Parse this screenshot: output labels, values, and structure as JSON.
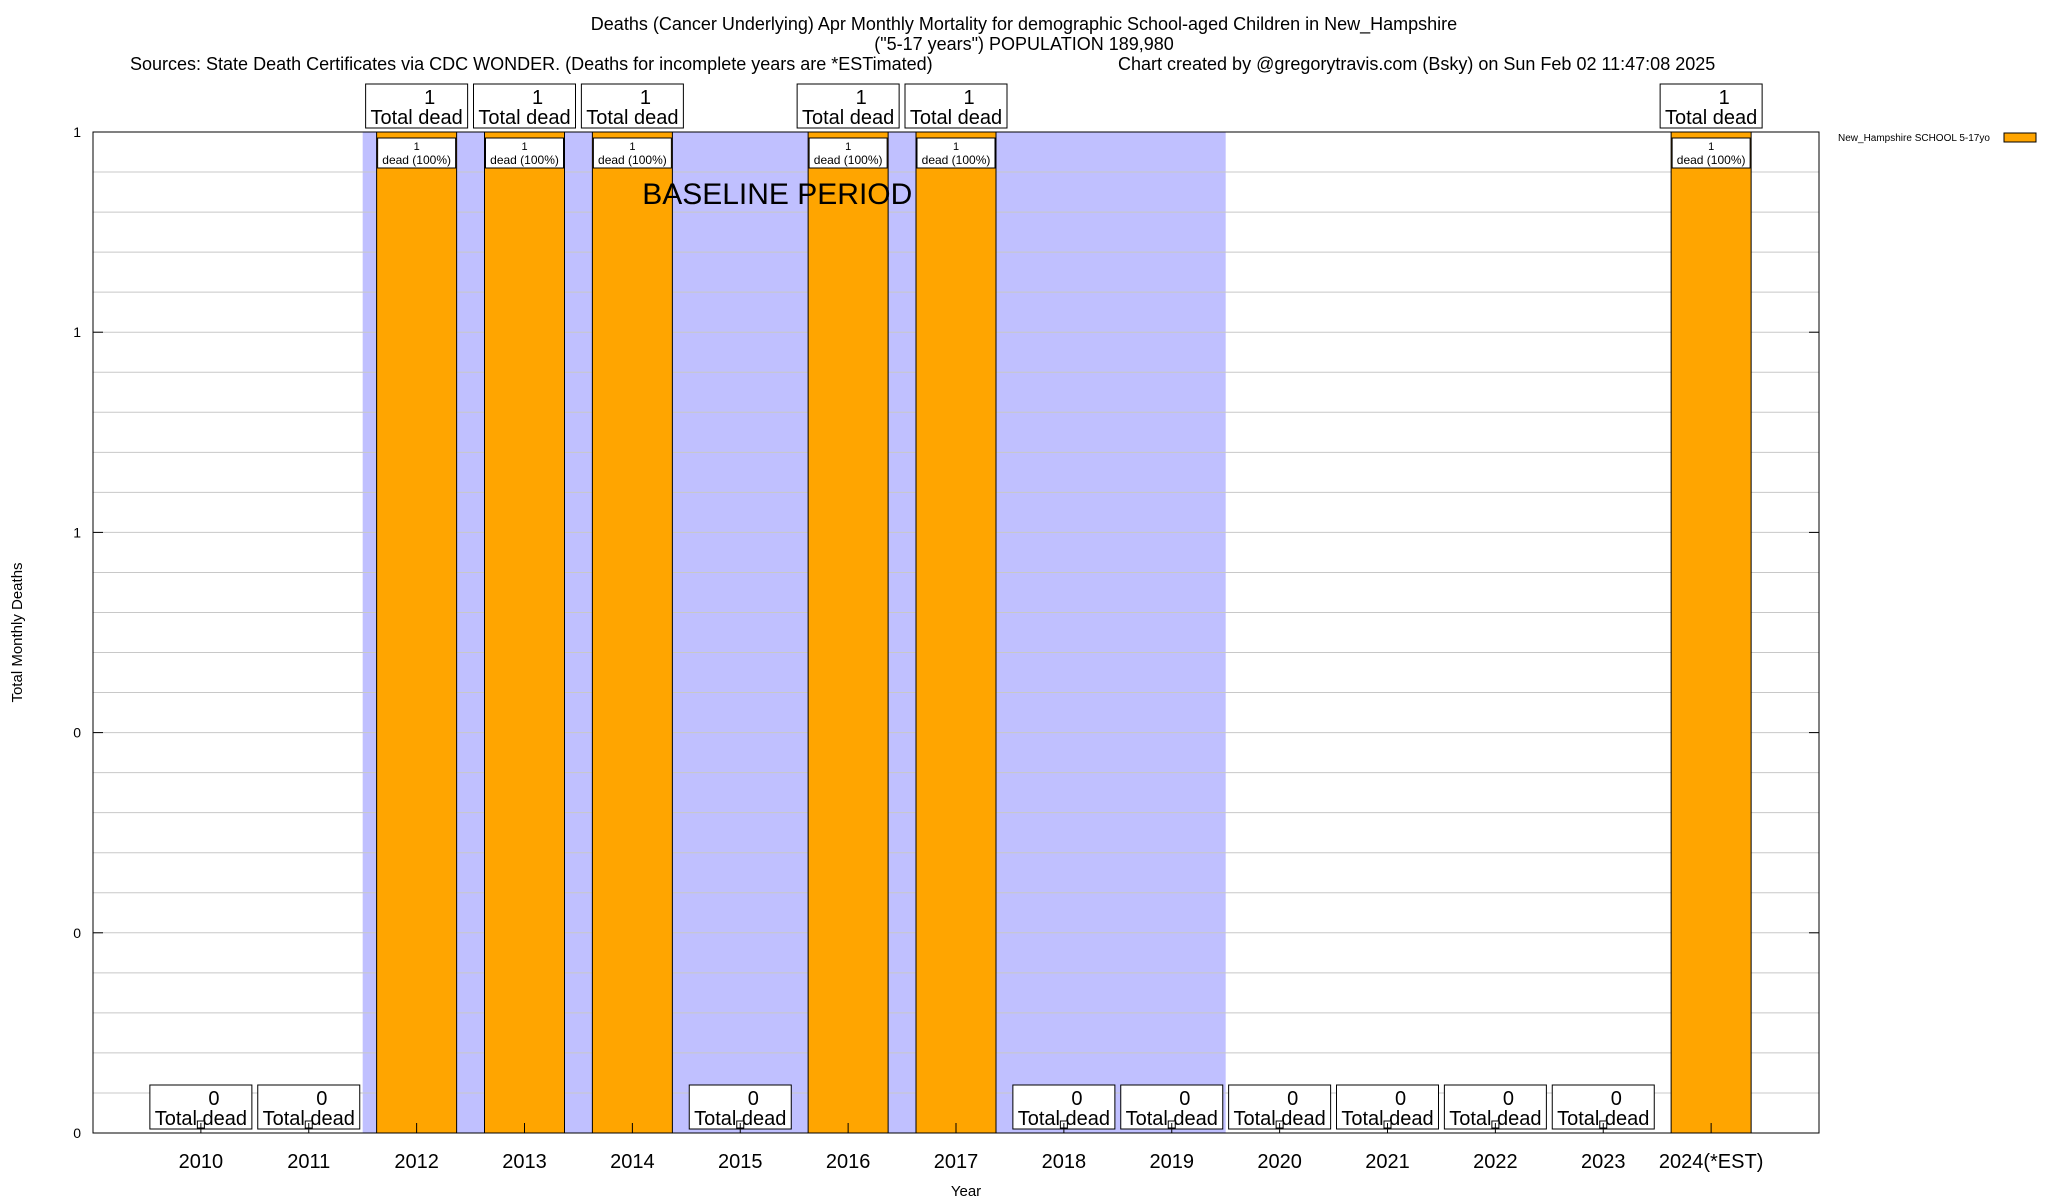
{
  "header": {
    "title_line1": "Deaths (Cancer Underlying) Apr Monthly Mortality for demographic School-aged Children in New_Hampshire",
    "title_line2": "(\"5-17 years\") POPULATION 189,980",
    "sources": "Sources: State Death Certificates via CDC WONDER. (Deaths for incomplete years are *ESTimated)",
    "credit": "Chart created by @gregorytravis.com (Bsky) on Sun Feb 02 11:47:08 2025"
  },
  "chart_data": {
    "type": "bar",
    "title": "Deaths (Cancer Underlying) Apr Monthly Mortality for demographic School-aged Children in New_Hampshire",
    "xlabel": "Year",
    "ylabel": "Total Monthly Deaths",
    "categories": [
      "2010",
      "2011",
      "2012",
      "2013",
      "2014",
      "2015",
      "2016",
      "2017",
      "2018",
      "2019",
      "2020",
      "2021",
      "2022",
      "2023",
      "2024(*EST)"
    ],
    "series": [
      {
        "name": "New_Hampshire SCHOOL 5-17yo",
        "color": "#ffa500",
        "values": [
          0,
          0,
          1,
          1,
          1,
          0,
          1,
          1,
          0,
          0,
          0,
          0,
          0,
          0,
          1
        ]
      }
    ],
    "total_labels": [
      "0",
      "0",
      "1",
      "1",
      "1",
      "0",
      "1",
      "1",
      "0",
      "0",
      "0",
      "0",
      "0",
      "0",
      "1"
    ],
    "total_suffix": "Total dead",
    "bar_labels": [
      "",
      "",
      "1",
      "1",
      "1",
      "",
      "1",
      "1",
      "",
      "",
      "",
      "",
      "",
      "",
      "1"
    ],
    "bar_suffix": "dead (100%)",
    "yticks": [
      {
        "value": 0,
        "label": "0"
      },
      {
        "value": 0.2,
        "label": "0"
      },
      {
        "value": 0.4,
        "label": "0"
      },
      {
        "value": 0.6,
        "label": "1"
      },
      {
        "value": 0.8,
        "label": "1"
      },
      {
        "value": 1,
        "label": "1"
      }
    ],
    "ylim": [
      0,
      1
    ],
    "grid": true,
    "baseline": {
      "label": "BASELINE PERIOD",
      "from": "2012",
      "to": "2019",
      "color": "#c0c0ff"
    },
    "legend_position": "top-right"
  }
}
